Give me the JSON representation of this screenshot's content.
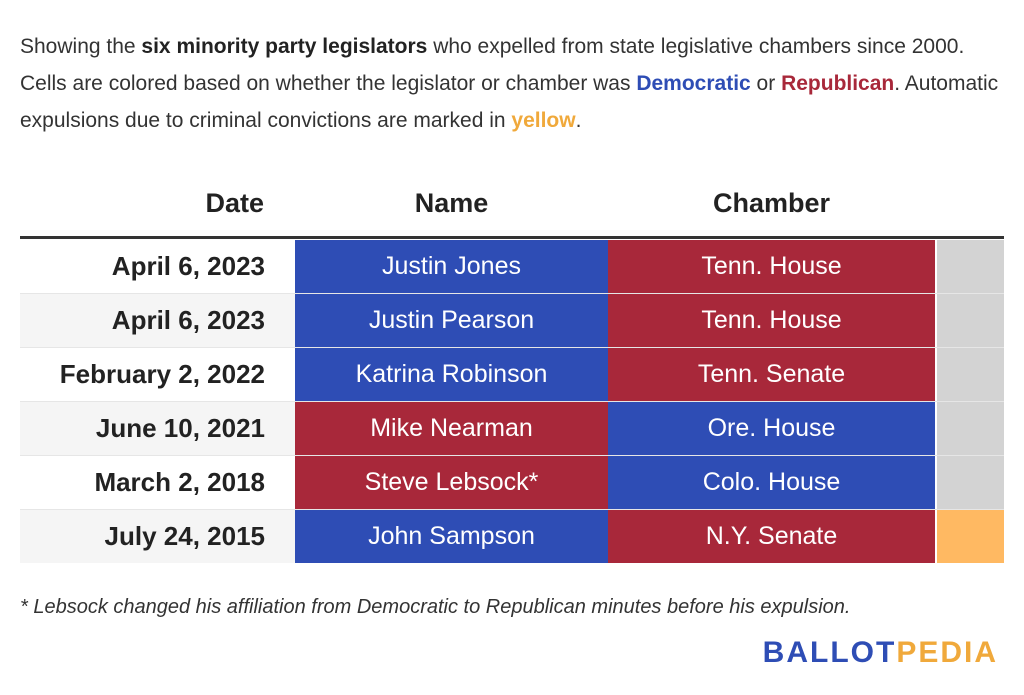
{
  "intro": {
    "p1": "Showing the ",
    "bold": "six minority party legislators",
    "p2": " who expelled from state legislative chambers since 2000. Cells are colored based on whether the legislator or chamber was ",
    "democratic": "Democratic",
    "p3": " or ",
    "republican": "Republican",
    "p4": ". Automatic expulsions due to criminal convictions are marked in ",
    "yellow": "yellow",
    "p5": "."
  },
  "headers": {
    "date": "Date",
    "name": "Name",
    "chamber": "Chamber"
  },
  "colors": {
    "dem": "#2e4db5",
    "rep": "#a8283a",
    "yellow": "#ffb962",
    "gray": "#d3d3d3"
  },
  "rows": [
    {
      "date": "April 6, 2023",
      "name": "Justin Jones",
      "name_party": "dem",
      "chamber": "Tenn. House",
      "chamber_party": "rep",
      "flag": "gray"
    },
    {
      "date": "April 6, 2023",
      "name": "Justin Pearson",
      "name_party": "dem",
      "chamber": "Tenn. House",
      "chamber_party": "rep",
      "flag": "gray"
    },
    {
      "date": "February 2, 2022",
      "name": "Katrina Robinson",
      "name_party": "dem",
      "chamber": "Tenn. Senate",
      "chamber_party": "rep",
      "flag": "gray"
    },
    {
      "date": "June 10, 2021",
      "name": "Mike Nearman",
      "name_party": "rep",
      "chamber": "Ore. House",
      "chamber_party": "dem",
      "flag": "gray"
    },
    {
      "date": "March 2, 2018",
      "name": "Steve Lebsock*",
      "name_party": "rep",
      "chamber": "Colo. House",
      "chamber_party": "dem",
      "flag": "gray"
    },
    {
      "date": "July 24, 2015",
      "name": "John Sampson",
      "name_party": "dem",
      "chamber": "N.Y. Senate",
      "chamber_party": "rep",
      "flag": "yellow"
    }
  ],
  "footnote": "* Lebsock changed his affiliation from Democratic to Republican minutes before his expulsion.",
  "logo": {
    "part1": "BALLOT",
    "part2": "PEDIA"
  }
}
